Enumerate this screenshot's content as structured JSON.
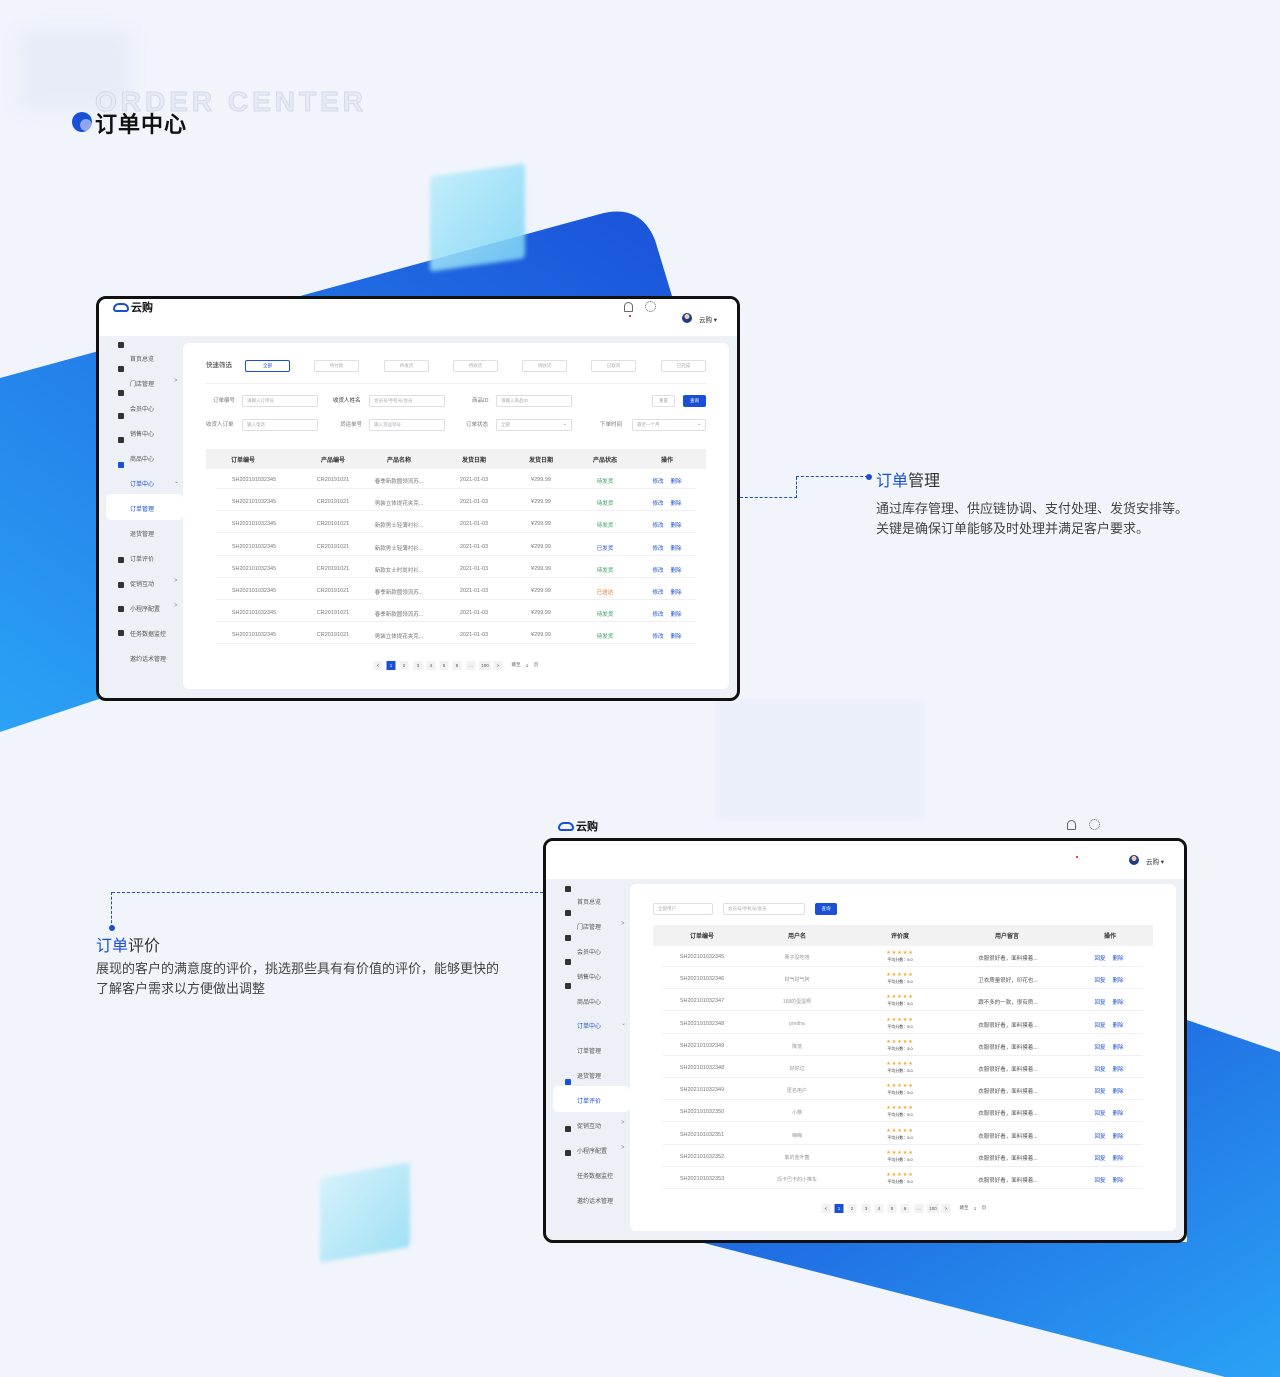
{
  "page": {
    "title": "订单中心",
    "watermark": "ORDER CENTER",
    "accent": "#1a4fd8",
    "gradient_light": "#2a9df4"
  },
  "annotation1": {
    "title_blue": "订单",
    "title_dark": "管理",
    "desc": [
      "通过库存管理、供应链协调、支付处理、发货安排等。",
      "关键是确保订单能够及时处理并满足客户要求。"
    ]
  },
  "annotation2": {
    "title_blue": "订单",
    "title_dark": "评价",
    "desc": "展现的客户的满意度的评价，挑选那些具有有价值的评价，能够更快的了解客户需求以方便做出调整"
  },
  "app": {
    "logo": "云购",
    "user": "云购",
    "icons": [
      "bell-icon",
      "gear-icon",
      "avatar"
    ]
  },
  "sidebar1": {
    "items": [
      {
        "label": "首页总览",
        "icon": "dashboard-icon"
      },
      {
        "label": "门店管理",
        "icon": "store-icon",
        "chevron": ">"
      },
      {
        "label": "会员中心",
        "icon": "diamond-icon"
      },
      {
        "label": "销售中心",
        "icon": "chart-icon"
      },
      {
        "label": "商品中心",
        "icon": "basket-icon"
      },
      {
        "label": "订单中心",
        "icon": "clipboard-icon",
        "chevron": "⌄",
        "active_group": true
      },
      {
        "label": "订单管理",
        "active": true
      },
      {
        "label": "退货管理"
      },
      {
        "label": "订单评价",
        "icon": "review-icon"
      },
      {
        "label": "促销互动",
        "icon": "promo-icon",
        "chevron": ">"
      },
      {
        "label": "小程序配置",
        "icon": "miniapp-icon",
        "chevron": ">"
      },
      {
        "label": "任务数据监控",
        "icon": "monitor-icon"
      },
      {
        "label": "邀约话术管理"
      }
    ]
  },
  "sidebar2": {
    "items": [
      {
        "label": "首页总览"
      },
      {
        "label": "门店管理",
        "chevron": ">"
      },
      {
        "label": "会员中心"
      },
      {
        "label": "销售中心"
      },
      {
        "label": "商品中心"
      },
      {
        "label": "订单中心",
        "chevron": "⌄"
      },
      {
        "label": "订单管理"
      },
      {
        "label": "退货管理"
      },
      {
        "label": "订单评价",
        "active": true
      },
      {
        "label": "促销互动",
        "chevron": ">"
      },
      {
        "label": "小程序配置",
        "chevron": ">"
      },
      {
        "label": "任务数据监控"
      },
      {
        "label": "邀约话术管理"
      }
    ]
  },
  "orders": {
    "quick_filter_label": "快速筛选",
    "quick_filters": [
      "全部",
      "待付款",
      "待发货",
      "待收货",
      "待收货",
      "已取消",
      "已完成"
    ],
    "form": {
      "order_no": {
        "label": "订单编号",
        "placeholder": "请输入订单号"
      },
      "receiver_name": {
        "label": "收货人姓名",
        "placeholder": "会员号/手机号/会员"
      },
      "product_id": {
        "label": "商品ID",
        "placeholder": "请输入商品ID"
      },
      "receiver_order": {
        "label": "收货人订单",
        "placeholder": "输入电话"
      },
      "waybill": {
        "label": "货运单号",
        "placeholder": "输入货运单号"
      },
      "status": {
        "label": "订单状态",
        "value": "全部"
      },
      "order_time": {
        "label": "下单时间",
        "value": "最近一个月"
      },
      "reset": "重置",
      "query": "查询"
    },
    "columns": [
      "订单编号",
      "产品编号",
      "产品名称",
      "发货日期",
      "发货日期",
      "产品状态",
      "操作"
    ],
    "rows": [
      {
        "order": "SH202101032345",
        "product": "CR20191021",
        "name": "春季新款圆领流苏...",
        "date": "2021-01-03",
        "price": "¥299.99",
        "status": "待发货",
        "status_color": "#2e9e5b"
      },
      {
        "order": "SH202101032345",
        "product": "CR20191021",
        "name": "男装立体提花夹克...",
        "date": "2021-01-03",
        "price": "¥299.99",
        "status": "待发货",
        "status_color": "#2e9e5b"
      },
      {
        "order": "SH202101032345",
        "product": "CR20191021",
        "name": "新款男士轻薄衬衫...",
        "date": "2021-01-03",
        "price": "¥299.99",
        "status": "待发货",
        "status_color": "#2e9e5b"
      },
      {
        "order": "SH202101032345",
        "product": "CR20191021",
        "name": "新款男士轻薄衬衫...",
        "date": "2021-01-03",
        "price": "¥299.99",
        "status": "已发货",
        "status_color": "#1a4fd8"
      },
      {
        "order": "SH202101032345",
        "product": "CR20191021",
        "name": "新款女士时尚衬衫...",
        "date": "2021-01-03",
        "price": "¥299.99",
        "status": "待发货",
        "status_color": "#2e9e5b"
      },
      {
        "order": "SH202101032345",
        "product": "CR20191021",
        "name": "春季新款圆领流苏...",
        "date": "2021-01-03",
        "price": "¥299.99",
        "status": "已送达",
        "status_color": "#f06a1f"
      },
      {
        "order": "SH202101032345",
        "product": "CR20191021",
        "name": "春季新款圆领流苏...",
        "date": "2021-01-03",
        "price": "¥299.99",
        "status": "待发货",
        "status_color": "#2e9e5b"
      },
      {
        "order": "SH202101032345",
        "product": "CR20191021",
        "name": "男装立体提花夹克...",
        "date": "2021-01-03",
        "price": "¥299.99",
        "status": "待发货",
        "status_color": "#2e9e5b"
      }
    ],
    "actions": [
      "修改",
      "删除"
    ]
  },
  "reviews": {
    "user_filter": "全部用户",
    "search_placeholder": "会员号/手机号/会员",
    "query": "查询",
    "columns": [
      "订单编号",
      "用户名",
      "评价度",
      "用户留言",
      "操作"
    ],
    "rows": [
      {
        "order": "SH202101032345",
        "user": "栗子没吃饱",
        "stars": 5,
        "score": "平均分数：5.0",
        "msg": "衣服很好看，面料摸着..."
      },
      {
        "order": "SH202101032346",
        "user": "财气财气阿",
        "stars": 5,
        "score": "平均分数：5.0",
        "msg": "卫衣质量很好，印花也..."
      },
      {
        "order": "SH202101032347",
        "user": "168的蛋蛋啊",
        "stars": 5,
        "score": "平均分数：5.0",
        "msg": "跟不多的一款，很有质..."
      },
      {
        "order": "SH202101032348",
        "user": "prettha",
        "stars": 5,
        "score": "平均分数：5.0",
        "msg": "衣服很好看，面料摸着..."
      },
      {
        "order": "SH202101032349",
        "user": "降落",
        "stars": 5,
        "score": "平均分数：5.0",
        "msg": "衣服很好看，面料摸着..."
      },
      {
        "order": "SH202101032348",
        "user": "好好过",
        "stars": 5,
        "score": "平均分数：5.0",
        "msg": "衣服很好看，面料摸着..."
      },
      {
        "order": "SH202101032349",
        "user": "匿名用户",
        "stars": 5,
        "score": "平均分数：5.0",
        "msg": "衣服很好看，面料摸着..."
      },
      {
        "order": "SH202101032350",
        "user": "小筷",
        "stars": 5,
        "score": "平均分数：5.0",
        "msg": "衣服很好看，面料摸着..."
      },
      {
        "order": "SH202101032351",
        "user": "嗨嗨",
        "stars": 5,
        "score": "平均分数：5.0",
        "msg": "衣服很好看，面料摸着..."
      },
      {
        "order": "SH202101032352",
        "user": "紫的金叶菌",
        "stars": 5,
        "score": "平均分数：5.0",
        "msg": "衣服很好看，面料摸着..."
      },
      {
        "order": "SH202101032353",
        "user": "玛卡巴卡的小推车",
        "stars": 5,
        "score": "平均分数：5.0",
        "msg": "衣服很好看，面料摸着..."
      }
    ],
    "actions": [
      "回复",
      "删除"
    ]
  },
  "pagination": {
    "prev": "<",
    "pages": [
      "1",
      "2",
      "3",
      "4",
      "5",
      "6",
      "...",
      "100"
    ],
    "next": ">",
    "current": "1",
    "jump_label": "跳至",
    "jump_value": "1",
    "page_suffix": "页"
  }
}
